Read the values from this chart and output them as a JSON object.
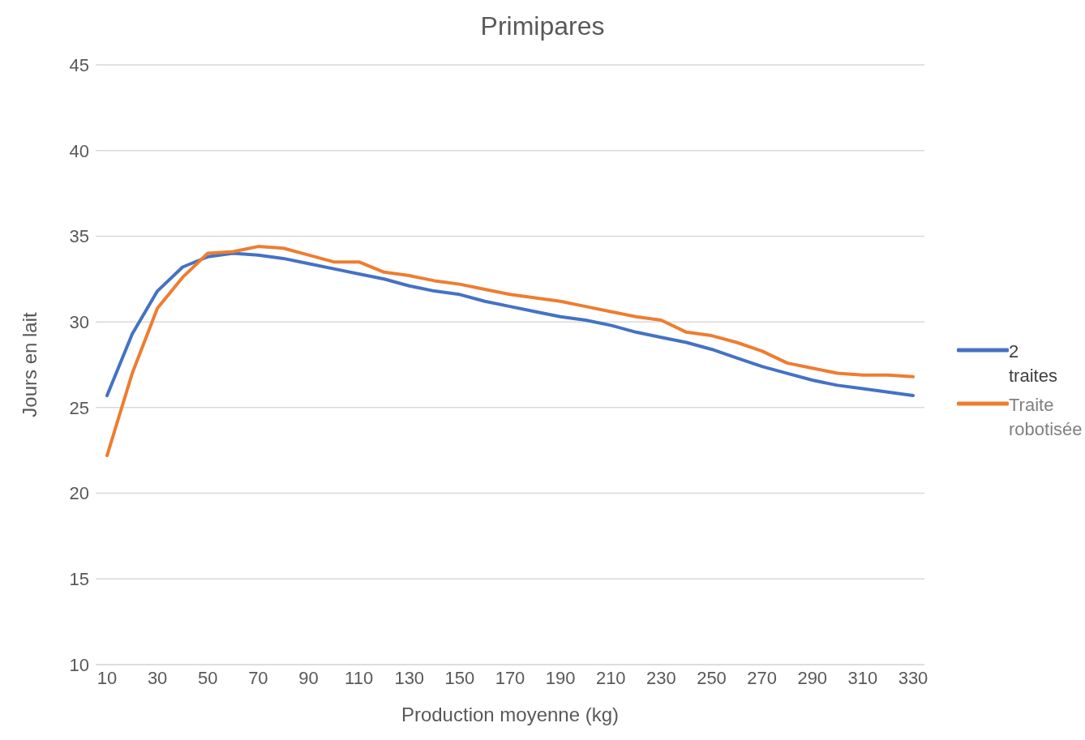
{
  "chart_data": {
    "type": "line",
    "title": "Primipares",
    "xlabel": "Production moyenne (kg)",
    "ylabel": "Jours en lait",
    "categories": [
      "10",
      null,
      "30",
      null,
      "50",
      null,
      "70",
      null,
      "90",
      null,
      "110",
      null,
      "130",
      null,
      "150",
      null,
      "170",
      null,
      "190",
      null,
      "210",
      null,
      "230",
      null,
      "250",
      null,
      "270",
      null,
      "290",
      null,
      "310",
      null,
      "330"
    ],
    "series": [
      {
        "name": "2 traites",
        "color": "#4472c4",
        "values": [
          25.7,
          29.3,
          31.8,
          33.2,
          33.8,
          34.0,
          33.9,
          33.7,
          33.4,
          33.1,
          32.8,
          32.5,
          32.1,
          31.8,
          31.6,
          31.2,
          30.9,
          30.6,
          30.3,
          30.1,
          29.8,
          29.4,
          29.1,
          28.8,
          28.4,
          27.9,
          27.4,
          27.0,
          26.6,
          26.3,
          26.1,
          25.9,
          25.7
        ]
      },
      {
        "name": "Traite robotisée",
        "color": "#ed7d31",
        "values": [
          22.2,
          27.0,
          30.8,
          32.6,
          34.0,
          34.1,
          34.4,
          34.3,
          33.9,
          33.5,
          33.5,
          32.9,
          32.7,
          32.4,
          32.2,
          31.9,
          31.6,
          31.4,
          31.2,
          30.9,
          30.6,
          30.3,
          30.1,
          29.4,
          29.2,
          28.8,
          28.3,
          27.6,
          27.3,
          27.0,
          26.9,
          26.9,
          26.8
        ]
      }
    ],
    "ylim": [
      10,
      45
    ],
    "yticks": [
      10,
      15,
      20,
      25,
      30,
      35,
      40,
      45
    ],
    "grid": "y",
    "legend": "right",
    "marker": "none",
    "line_style": "solid"
  }
}
